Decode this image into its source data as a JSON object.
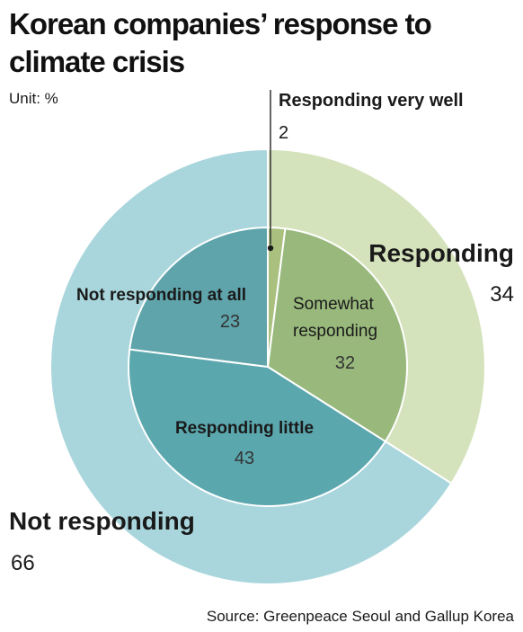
{
  "title_line1": "Korean companies’ response to",
  "title_line2": "climate crisis",
  "unit": "Unit: %",
  "source": "Source: Greenpeace Seoul and Gallup Korea",
  "colors": {
    "outer_responding": "#d5e3bc",
    "outer_not_responding": "#a9d6dc",
    "inner_very_well": "#a9c07e",
    "inner_somewhat": "#98b87c",
    "inner_little": "#5ba7ae",
    "inner_not_at_all": "#5fa4ab",
    "divider": "#ffffff",
    "text": "#1a1a1a",
    "inner_value_text": "#333333"
  },
  "chart_data": {
    "type": "pie",
    "subtype": "nested donut",
    "unit": "%",
    "outer": [
      {
        "label": "Responding",
        "value": 34
      },
      {
        "label": "Not responding",
        "value": 66
      }
    ],
    "inner": [
      {
        "label": "Responding very well",
        "value": 2,
        "parent": "Responding"
      },
      {
        "label": "Somewhat responding",
        "value": 32,
        "parent": "Responding"
      },
      {
        "label": "Responding little",
        "value": 43,
        "parent": "Not responding"
      },
      {
        "label": "Not responding at all",
        "value": 23,
        "parent": "Not responding"
      }
    ],
    "labels": {
      "responding": {
        "name": "Responding",
        "value": "34"
      },
      "not_responding": {
        "name": "Not responding",
        "value": "66"
      },
      "very_well": {
        "name": "Responding very well",
        "value": "2"
      },
      "somewhat": {
        "name_line1": "Somewhat",
        "name_line2": "responding",
        "value": "32"
      },
      "little": {
        "name": "Responding little",
        "value": "43"
      },
      "not_at_all": {
        "name": "Not responding at all",
        "value": "23"
      }
    }
  }
}
